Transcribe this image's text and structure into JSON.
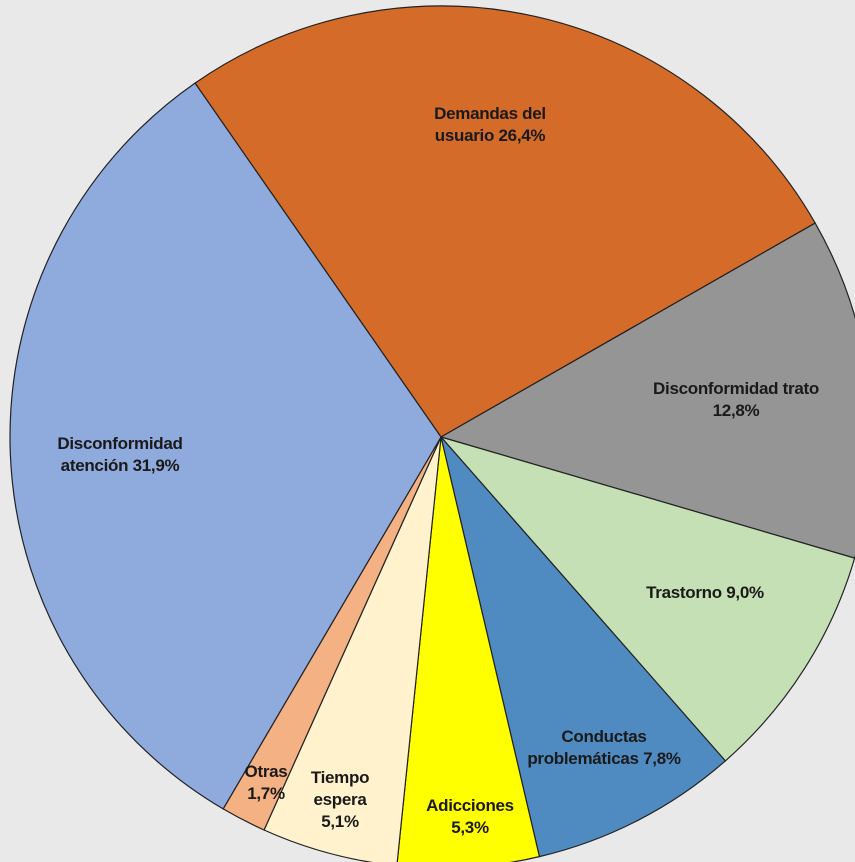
{
  "chart_data": {
    "type": "pie",
    "categories": [
      "Demandas del usuario",
      "Disconformidad trato",
      "Trastorno",
      "Conductas problemáticas",
      "Adicciones",
      "Tiempo espera",
      "Otras",
      "Disconformidad atención"
    ],
    "values": [
      26.4,
      12.8,
      9.0,
      7.8,
      5.3,
      5.1,
      1.7,
      31.9
    ],
    "value_labels": [
      "26,4%",
      "12,8%",
      "9,0%",
      "7,8%",
      "5,3%",
      "5,1%",
      "1,7%",
      "31,9%"
    ],
    "colors": [
      "#d46b29",
      "#959595",
      "#c5e0b4",
      "#4f8bc0",
      "#ffff00",
      "#fff2cc",
      "#f4b183",
      "#8faadc"
    ]
  }
}
